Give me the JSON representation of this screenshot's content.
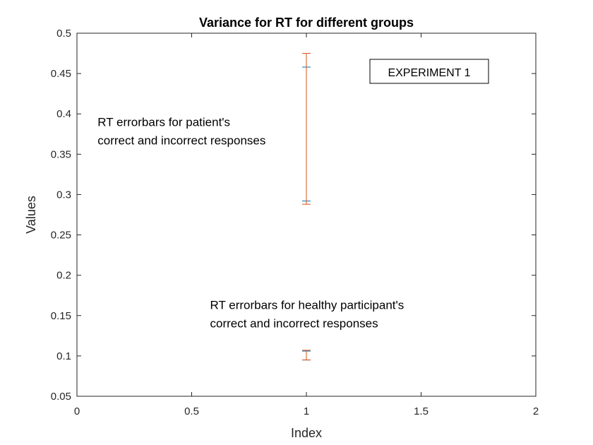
{
  "chart_data": {
    "type": "errorbar",
    "title": "Variance for RT for different groups",
    "xlabel": "Index",
    "ylabel": "Values",
    "xlim": [
      0,
      2
    ],
    "ylim": [
      0.05,
      0.5
    ],
    "xticks": [
      "0",
      "0.5",
      "1",
      "1.5",
      "2"
    ],
    "xtick_values": [
      0,
      0.5,
      1,
      1.5,
      2
    ],
    "yticks": [
      "0.05",
      "0.1",
      "0.15",
      "0.2",
      "0.25",
      "0.3",
      "0.35",
      "0.4",
      "0.45",
      "0.5"
    ],
    "ytick_values": [
      0.05,
      0.1,
      0.15,
      0.2,
      0.25,
      0.3,
      0.35,
      0.4,
      0.45,
      0.5
    ],
    "grid": false,
    "legend_box_text": "EXPERIMENT 1",
    "series": [
      {
        "color": "#0072BD",
        "x": 1,
        "low": 0.292,
        "high": 0.458
      },
      {
        "color": "#D95319",
        "x": 1,
        "low": 0.288,
        "high": 0.475
      },
      {
        "color": "#0072BD",
        "x": 1,
        "low": 0.095,
        "high": 0.106
      },
      {
        "color": "#D95319",
        "x": 1,
        "low": 0.095,
        "high": 0.107
      }
    ],
    "annotations": [
      {
        "lines": [
          "RT errorbars for patient's",
          "correct and incorrect responses"
        ],
        "x": 0.09,
        "y": 0.385
      },
      {
        "lines": [
          "RT errorbars for healthy participant's",
          "correct and incorrect responses"
        ],
        "x": 0.58,
        "y": 0.158
      }
    ]
  }
}
